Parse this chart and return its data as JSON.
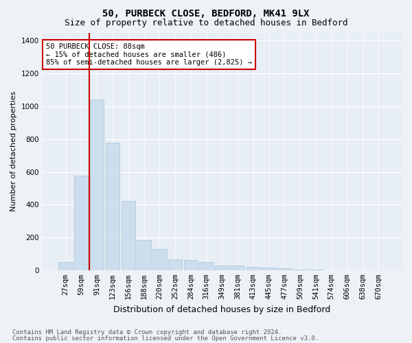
{
  "title1": "50, PURBECK CLOSE, BEDFORD, MK41 9LX",
  "title2": "Size of property relative to detached houses in Bedford",
  "xlabel": "Distribution of detached houses by size in Bedford",
  "ylabel": "Number of detached properties",
  "categories": [
    "27sqm",
    "59sqm",
    "91sqm",
    "123sqm",
    "156sqm",
    "188sqm",
    "220sqm",
    "252sqm",
    "284sqm",
    "316sqm",
    "349sqm",
    "381sqm",
    "413sqm",
    "445sqm",
    "477sqm",
    "509sqm",
    "541sqm",
    "574sqm",
    "606sqm",
    "638sqm",
    "670sqm"
  ],
  "values": [
    50,
    575,
    1040,
    780,
    420,
    183,
    127,
    65,
    60,
    50,
    30,
    27,
    22,
    15,
    10,
    5,
    3,
    0,
    0,
    0,
    0
  ],
  "bar_color": "#ccdded",
  "bar_edgecolor": "#aac4d8",
  "vline_color": "#cc0000",
  "vline_x_index": 1.5,
  "annotation_line1": "50 PURBECK CLOSE: 88sqm",
  "annotation_line2": "← 15% of detached houses are smaller (486)",
  "annotation_line3": "85% of semi-detached houses are larger (2,825) →",
  "annotation_box_edgecolor": "#cc0000",
  "ylim": [
    0,
    1450
  ],
  "yticks": [
    0,
    200,
    400,
    600,
    800,
    1000,
    1200,
    1400
  ],
  "fig_bg_color": "#eef2f7",
  "plot_bg_color": "#e8eef5",
  "grid_color": "#ffffff",
  "title1_fontsize": 10,
  "title2_fontsize": 9,
  "xlabel_fontsize": 9,
  "ylabel_fontsize": 8,
  "tick_fontsize": 7.5,
  "annot_fontsize": 7.5,
  "footer_fontsize": 6.5,
  "footer1": "Contains HM Land Registry data © Crown copyright and database right 2024.",
  "footer2": "Contains public sector information licensed under the Open Government Licence v3.0."
}
